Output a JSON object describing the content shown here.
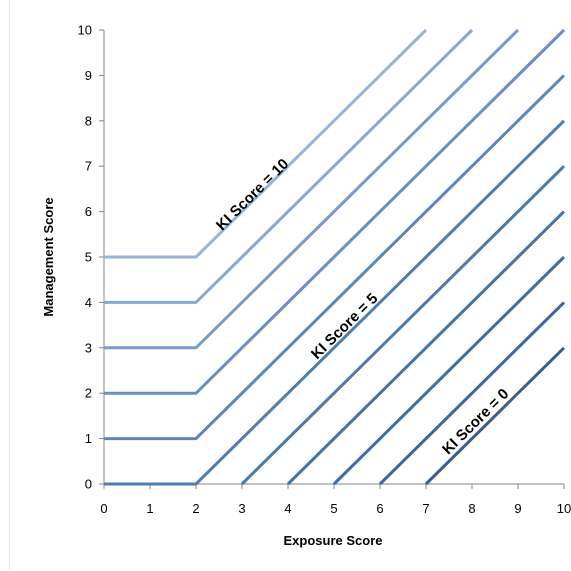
{
  "chart_data": {
    "type": "line",
    "title": "",
    "xlabel": "Exposure Score",
    "ylabel": "Management Score",
    "xlim": [
      0,
      10
    ],
    "ylim": [
      0,
      10
    ],
    "x_ticks": [
      "0",
      "1",
      "2",
      "3",
      "4",
      "5",
      "6",
      "7",
      "8",
      "9",
      "10"
    ],
    "y_ticks": [
      "0",
      "1",
      "2",
      "3",
      "4",
      "5",
      "6",
      "7",
      "8",
      "9",
      "10"
    ],
    "grid": false,
    "legend": "none",
    "series": [
      {
        "color": "#365F91",
        "points": [
          [
            7,
            0
          ],
          [
            10,
            3
          ]
        ]
      },
      {
        "color": "#3B679D",
        "points": [
          [
            6,
            0
          ],
          [
            10,
            4
          ]
        ]
      },
      {
        "color": "#3F6EA6",
        "points": [
          [
            5,
            0
          ],
          [
            10,
            5
          ]
        ]
      },
      {
        "color": "#4472AE",
        "points": [
          [
            4,
            0
          ],
          [
            10,
            6
          ]
        ]
      },
      {
        "color": "#4A78B4",
        "points": [
          [
            3,
            0
          ],
          [
            10,
            7
          ]
        ]
      },
      {
        "color": "#4E7CB8",
        "points": [
          [
            0,
            0
          ],
          [
            2,
            0
          ],
          [
            10,
            8
          ]
        ]
      },
      {
        "color": "#5A86BE",
        "points": [
          [
            0,
            1
          ],
          [
            2,
            1
          ],
          [
            10,
            9
          ]
        ]
      },
      {
        "color": "#6690C4",
        "points": [
          [
            0,
            2
          ],
          [
            2,
            2
          ],
          [
            10,
            10
          ]
        ]
      },
      {
        "color": "#759BCA",
        "points": [
          [
            0,
            3
          ],
          [
            2,
            3
          ],
          [
            9,
            10
          ]
        ]
      },
      {
        "color": "#86A8D1",
        "points": [
          [
            0,
            4
          ],
          [
            2,
            4
          ],
          [
            8,
            10
          ]
        ]
      },
      {
        "color": "#97B4D8",
        "points": [
          [
            0,
            5
          ],
          [
            2,
            5
          ],
          [
            7,
            10
          ]
        ]
      }
    ],
    "annotations": [
      {
        "text": "KI Score = 10",
        "x": 3.3,
        "y": 6.3
      },
      {
        "text": "KI Score = 5",
        "x": 5.3,
        "y": 3.4
      },
      {
        "text": "KI Score = 0",
        "x": 8.15,
        "y": 1.3
      }
    ]
  }
}
